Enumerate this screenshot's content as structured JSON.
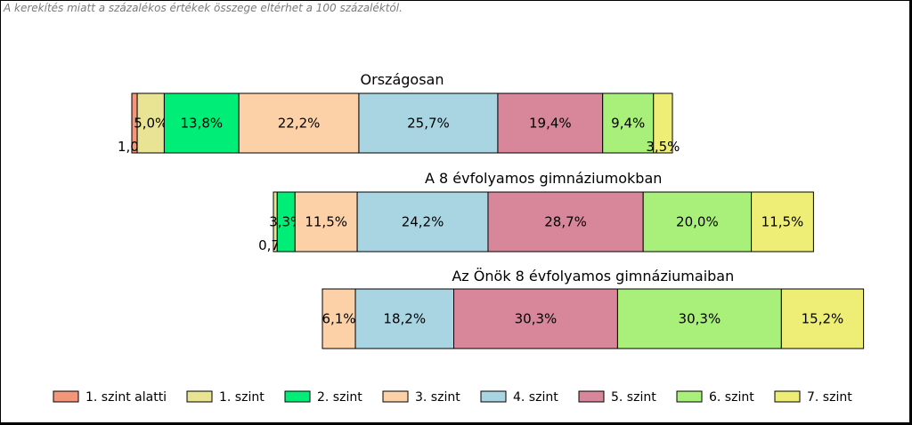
{
  "note": "A kerekítés miatt a  százalékos értékek összege eltérhet a 100 százaléktól.",
  "chart_data": {
    "type": "bar",
    "stacked": true,
    "orientation": "horizontal",
    "series_colors": [
      "#f4967a",
      "#e8e494",
      "#00ee77",
      "#fdd1a8",
      "#a9d5e3",
      "#d8869a",
      "#a9f07a",
      "#eeee77"
    ],
    "legend": [
      "1. szint alatti",
      "1. szint",
      "2. szint",
      "3. szint",
      "4. szint",
      "5. szint",
      "6. szint",
      "7. szint"
    ],
    "legend_position": "bottom",
    "bars": [
      {
        "title": "Országosan",
        "values": [
          1.0,
          5.0,
          13.8,
          22.2,
          25.7,
          19.4,
          9.4,
          3.5
        ],
        "labels": [
          "1,0%",
          "5,0%",
          "13,8%",
          "22,2%",
          "25,7%",
          "19,4%",
          "9,4%",
          "3,5%"
        ]
      },
      {
        "title": "A 8 évfolyamos gimnáziumokban",
        "values": [
          0.0,
          0.7,
          3.3,
          11.5,
          24.2,
          28.7,
          20.0,
          11.5
        ],
        "labels": [
          "",
          "0,7%",
          "3,3%",
          "11,5%",
          "24,2%",
          "28,7%",
          "20,0%",
          "11,5%"
        ]
      },
      {
        "title": "Az Önök 8 évfolyamos gimnáziumaiban",
        "values": [
          0.0,
          0.0,
          0.0,
          6.1,
          18.2,
          30.3,
          30.3,
          15.2
        ],
        "labels": [
          "",
          "",
          "",
          "6,1%",
          "18,2%",
          "30,3%",
          "30,3%",
          "15,2%"
        ]
      }
    ]
  }
}
